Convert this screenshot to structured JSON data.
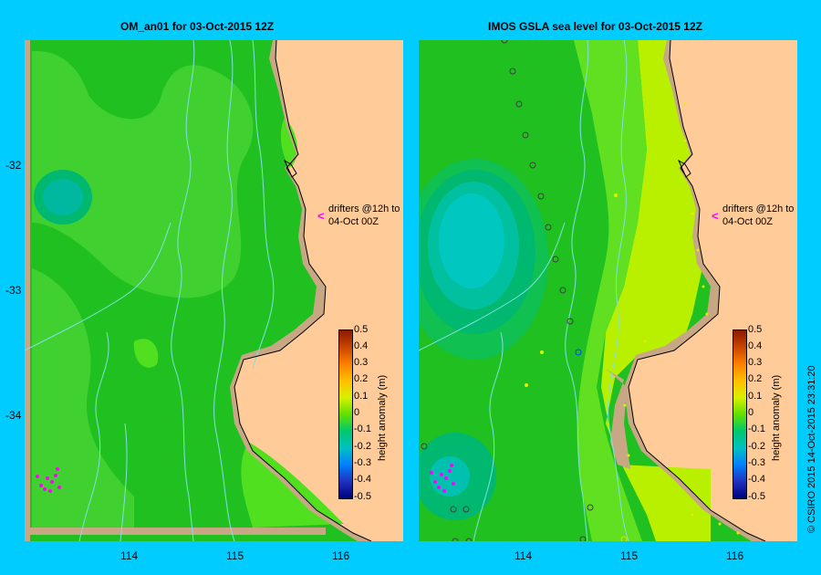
{
  "panels": [
    {
      "title": "OM_an01  for 03-Oct-2015 12Z",
      "annotation_line1": "drifters @12h to",
      "annotation_line2": "04-Oct 00Z",
      "colorbar_title": "height anomaly (m)"
    },
    {
      "title": "IMOS GSLA sea level  for 03-Oct-2015 12Z",
      "annotation_line1": "drifters @12h to",
      "annotation_line2": "04-Oct 00Z",
      "colorbar_title": "height anomaly (m)"
    }
  ],
  "axes": {
    "y_ticks": [
      "-32",
      "-33",
      "-34"
    ],
    "x_ticks": [
      "114",
      "115",
      "116"
    ]
  },
  "colorbar_ticks": [
    "0.5",
    "0.4",
    "0.3",
    "0.2",
    "0.1",
    "0",
    "-0.1",
    "-0.2",
    "-0.3",
    "-0.4",
    "-0.5"
  ],
  "credit": "© CSIRO 2015   14-Oct-2015 23:31:20",
  "colors": {
    "background": "#00ccff",
    "land": "#ffcc99",
    "shelf": "#c8a884",
    "ocean_green": "#20c020",
    "drifter": "#ff00ff"
  }
}
